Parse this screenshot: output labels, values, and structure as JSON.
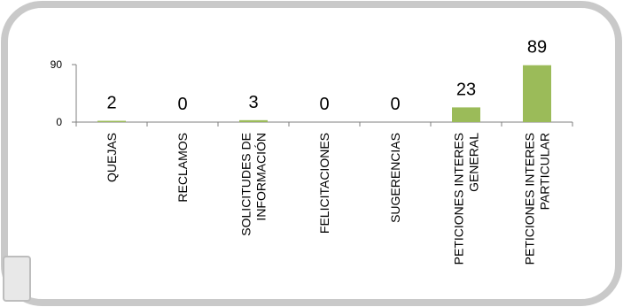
{
  "chart_data": {
    "type": "bar",
    "categories": [
      [
        "QUEJAS"
      ],
      [
        "RECLAMOS"
      ],
      [
        "SOLICITUDES DE",
        "INFORMACIÓN"
      ],
      [
        "FELICITACIONES"
      ],
      [
        "SUGERENCIAS"
      ],
      [
        "PETICIONES INTERES",
        "GENERAL"
      ],
      [
        "PETICIONES INTERES",
        "PARTICULAR"
      ]
    ],
    "values": [
      2,
      0,
      3,
      0,
      0,
      23,
      89
    ],
    "data_labels": [
      "2",
      "0",
      "3",
      "0",
      "0",
      "23",
      "89"
    ],
    "yticks": [
      {
        "value": 0,
        "label": "0"
      },
      {
        "value": 90,
        "label": "90"
      }
    ],
    "ylim": [
      0,
      90
    ],
    "bar_color": "#9bbb59",
    "axis_color": "#7f7f7f",
    "grid": false,
    "legend": "none",
    "title": "",
    "xlabel": "",
    "ylabel": ""
  }
}
